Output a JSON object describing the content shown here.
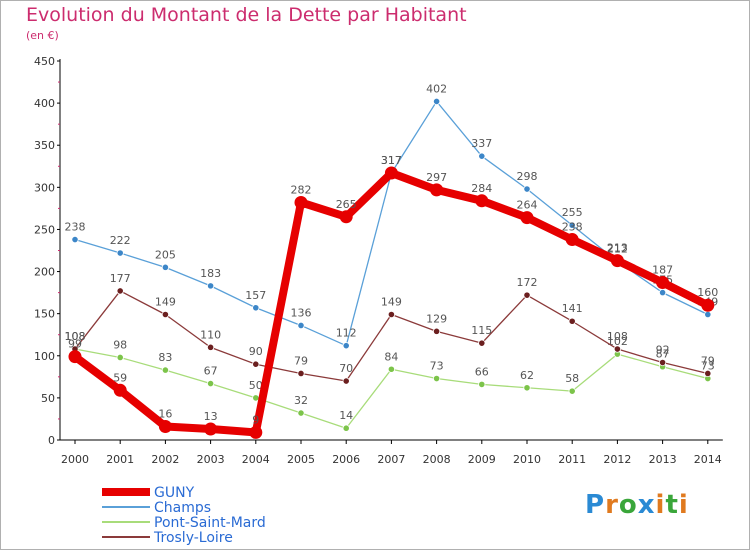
{
  "title": "Evolution du Montant de la Dette par Habitant",
  "unit": "(en €)",
  "logo": {
    "text": "Proxiti",
    "letter_colors": [
      "#2a8ad4",
      "#e07a1f",
      "#3aa63a",
      "#2a8ad4",
      "#e07a1f",
      "#3aa63a",
      "#e07a1f"
    ]
  },
  "chart_data": {
    "type": "line",
    "x": [
      "2000",
      "2001",
      "2002",
      "2003",
      "2004",
      "2005",
      "2006",
      "2007",
      "2008",
      "2009",
      "2010",
      "2011",
      "2012",
      "2013",
      "2014"
    ],
    "ylim": [
      0,
      450
    ],
    "yticks": [
      0,
      50,
      100,
      150,
      200,
      250,
      300,
      350,
      400,
      450
    ],
    "grid": false,
    "legend_position": "bottom-left",
    "series": [
      {
        "name": "Champs",
        "color": "#5aa0d8",
        "marker": "#3c86c8",
        "values": [
          238,
          222,
          205,
          183,
          157,
          136,
          112,
          317,
          402,
          337,
          298,
          255,
          212,
          175,
          149
        ]
      },
      {
        "name": "Pont-Saint-Mard",
        "color": "#a8dc7a",
        "marker": "#7cc44a",
        "values": [
          108,
          98,
          83,
          67,
          50,
          32,
          14,
          84,
          73,
          66,
          62,
          58,
          102,
          87,
          73
        ]
      },
      {
        "name": "Trosly-Loire",
        "color": "#8b3a3a",
        "marker": "#6b1f1f",
        "values": [
          108,
          177,
          149,
          110,
          90,
          79,
          70,
          149,
          129,
          115,
          172,
          141,
          108,
          92,
          79
        ]
      },
      {
        "name": "GUNY",
        "color": "#e60000",
        "marker": "#e60000",
        "values": [
          99,
          59,
          16,
          13,
          9,
          282,
          265,
          317,
          297,
          284,
          264,
          238,
          213,
          187,
          160
        ]
      }
    ],
    "legend_order": [
      "GUNY",
      "Champs",
      "Pont-Saint-Mard",
      "Trosly-Loire"
    ]
  }
}
